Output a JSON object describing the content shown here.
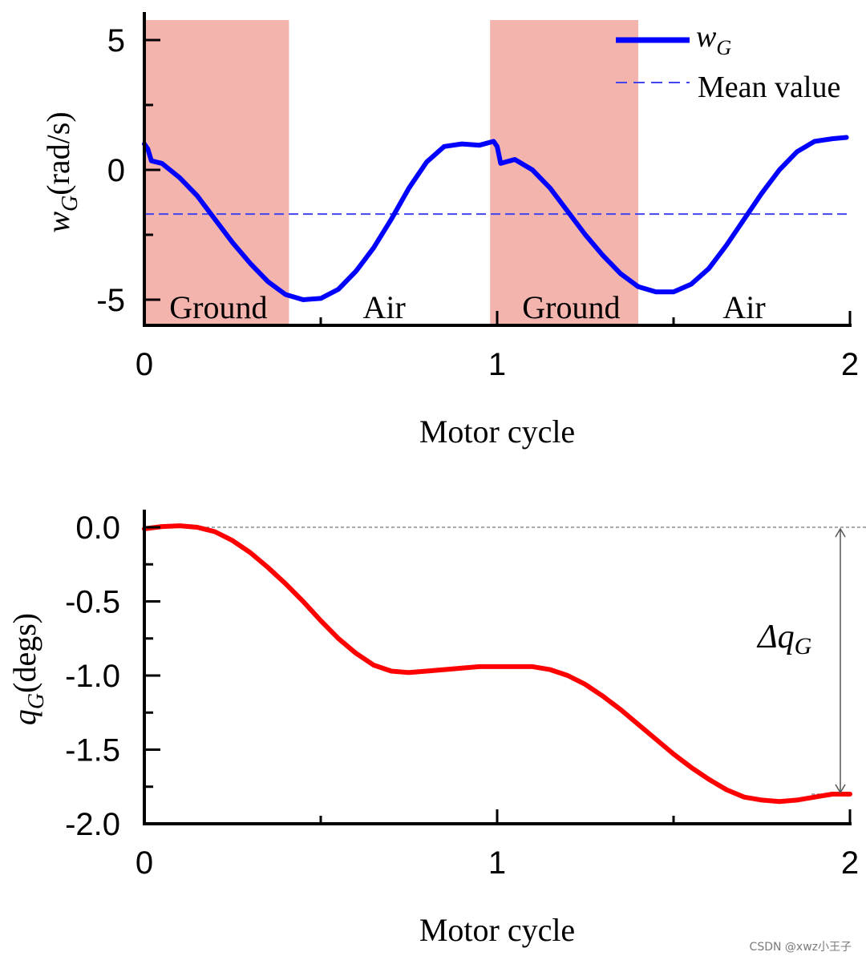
{
  "chart_data": [
    {
      "type": "line",
      "ylabel_main": "w",
      "ylabel_sub": "G",
      "ylabel_unit": "(rad/s)",
      "xlabel": "Motor cycle",
      "xlim": [
        0,
        2
      ],
      "ylim": [
        -6,
        6
      ],
      "x_ticks": [
        0,
        1,
        2
      ],
      "x_tick_labels": [
        "0",
        "1",
        "2"
      ],
      "y_ticks": [
        5,
        0,
        -5
      ],
      "y_tick_labels": [
        "5",
        "0",
        "-5"
      ],
      "series": [
        {
          "name": "w_G",
          "legend_main": "w",
          "legend_sub": "G",
          "color": "#0000ff",
          "x": [
            0,
            0.01,
            0.02,
            0.05,
            0.1,
            0.15,
            0.2,
            0.25,
            0.3,
            0.35,
            0.4,
            0.45,
            0.5,
            0.55,
            0.6,
            0.65,
            0.7,
            0.75,
            0.8,
            0.85,
            0.9,
            0.95,
            0.99,
            1.0,
            1.01,
            1.05,
            1.1,
            1.15,
            1.2,
            1.25,
            1.3,
            1.35,
            1.4,
            1.45,
            1.5,
            1.55,
            1.6,
            1.65,
            1.7,
            1.75,
            1.8,
            1.85,
            1.9,
            1.95,
            1.99
          ],
          "y": [
            1.0,
            0.8,
            0.35,
            0.25,
            -0.3,
            -1.0,
            -1.9,
            -2.8,
            -3.6,
            -4.3,
            -4.8,
            -5.0,
            -4.95,
            -4.6,
            -3.9,
            -3.0,
            -1.9,
            -0.7,
            0.3,
            0.9,
            1.0,
            0.95,
            1.1,
            0.9,
            0.25,
            0.4,
            0.0,
            -0.7,
            -1.6,
            -2.5,
            -3.3,
            -4.0,
            -4.5,
            -4.7,
            -4.7,
            -4.4,
            -3.8,
            -2.9,
            -1.9,
            -0.9,
            0.0,
            0.7,
            1.1,
            1.2,
            1.25
          ]
        },
        {
          "name": "Mean value",
          "color": "#4444ee",
          "style": "dashed",
          "x": [
            0,
            2
          ],
          "y": [
            -1.7,
            -1.7
          ]
        }
      ],
      "shaded_regions": [
        {
          "x0": 0,
          "x1": 0.41,
          "label": "Ground",
          "color": "#f4b4ae"
        },
        {
          "x0": 0.98,
          "x1": 1.4,
          "label": "Ground",
          "color": "#f4b4ae"
        }
      ],
      "region_labels": [
        {
          "text": "Ground",
          "x": 0.21,
          "color": "#ff0000"
        },
        {
          "text": "Air",
          "x": 0.68,
          "color": "#555555"
        },
        {
          "text": "Ground",
          "x": 1.21,
          "color": "#ff0000"
        },
        {
          "text": "Air",
          "x": 1.7,
          "color": "#555555"
        }
      ],
      "legend_position": "top-right"
    },
    {
      "type": "line",
      "ylabel_main": "q",
      "ylabel_sub": "G",
      "ylabel_unit": "(degs)",
      "xlabel": "Motor cycle",
      "xlim": [
        0,
        2
      ],
      "ylim": [
        -2.0,
        0.12
      ],
      "x_ticks": [
        0,
        1,
        2
      ],
      "x_tick_labels": [
        "0",
        "1",
        "2"
      ],
      "y_ticks": [
        0.0,
        -0.5,
        -1.0,
        -1.5,
        -2.0
      ],
      "y_tick_labels": [
        "0.0",
        "-0.5",
        "-1.0",
        "-1.5",
        "-2.0"
      ],
      "series": [
        {
          "name": "q_G",
          "color": "#ff0000",
          "x": [
            0,
            0.05,
            0.1,
            0.15,
            0.2,
            0.25,
            0.3,
            0.35,
            0.4,
            0.45,
            0.5,
            0.55,
            0.6,
            0.65,
            0.7,
            0.75,
            0.8,
            0.85,
            0.9,
            0.95,
            1.0,
            1.05,
            1.1,
            1.15,
            1.2,
            1.25,
            1.3,
            1.35,
            1.4,
            1.45,
            1.5,
            1.55,
            1.6,
            1.65,
            1.7,
            1.75,
            1.8,
            1.85,
            1.9,
            1.95,
            2.0
          ],
          "y": [
            -0.01,
            0.005,
            0.01,
            0.0,
            -0.03,
            -0.09,
            -0.17,
            -0.27,
            -0.38,
            -0.5,
            -0.63,
            -0.75,
            -0.85,
            -0.93,
            -0.97,
            -0.98,
            -0.97,
            -0.96,
            -0.95,
            -0.94,
            -0.94,
            -0.94,
            -0.94,
            -0.96,
            -1.0,
            -1.06,
            -1.14,
            -1.23,
            -1.33,
            -1.43,
            -1.53,
            -1.62,
            -1.7,
            -1.77,
            -1.82,
            -1.84,
            -1.85,
            -1.84,
            -1.82,
            -1.8,
            -1.8
          ]
        }
      ],
      "reference_lines": {
        "top": 0.0,
        "bottom": -1.8
      },
      "annotation_main": "Δq",
      "annotation_sub": "G"
    }
  ],
  "watermark": "CSDN @xwz小王子"
}
